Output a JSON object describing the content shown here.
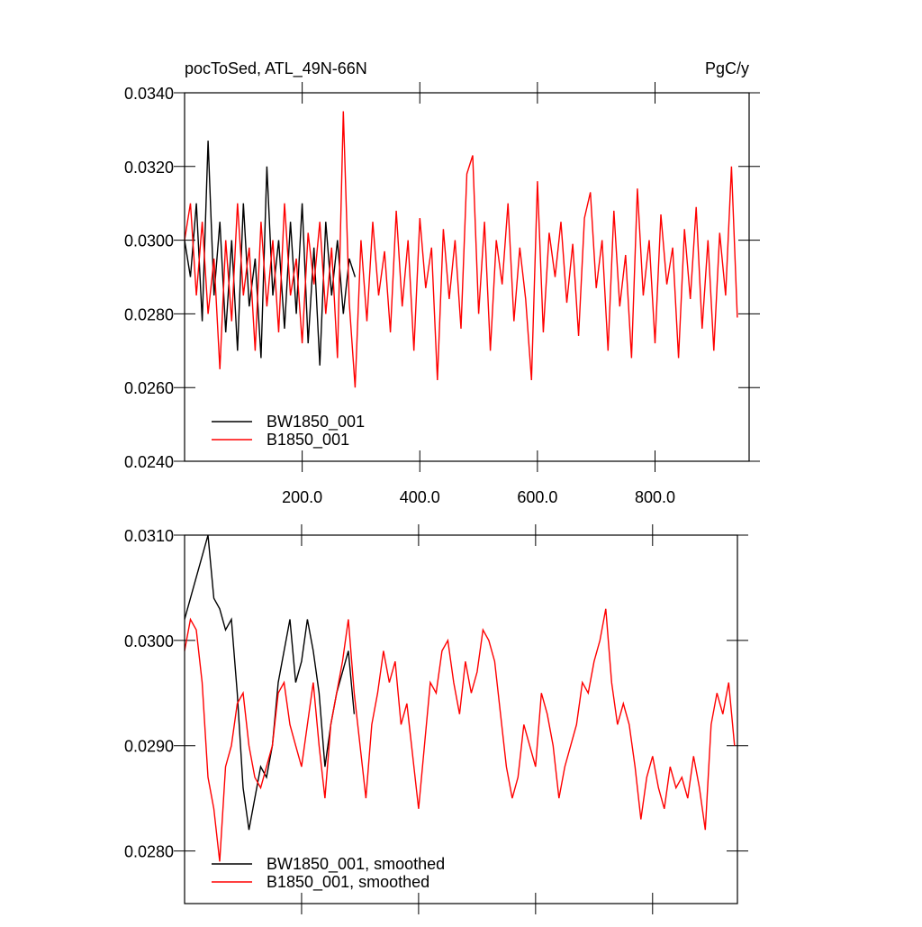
{
  "chart_data": [
    {
      "type": "line",
      "title": "pocToSed, ATL_49N-66N",
      "units": "PgC/y",
      "xlim": [
        0,
        960
      ],
      "xticks": [
        {
          "value": 200,
          "label": "200.0"
        },
        {
          "value": 400,
          "label": "400.0"
        },
        {
          "value": 600,
          "label": "600.0"
        },
        {
          "value": 800,
          "label": "800.0"
        }
      ],
      "xtick_labels": true,
      "ylim": [
        0.024,
        0.034
      ],
      "yticks": [
        {
          "value": 0.024,
          "label": "0.0240"
        },
        {
          "value": 0.026,
          "label": "0.0260"
        },
        {
          "value": 0.028,
          "label": "0.0280"
        },
        {
          "value": 0.03,
          "label": "0.0300"
        },
        {
          "value": 0.032,
          "label": "0.0320"
        },
        {
          "value": 0.034,
          "label": "0.0340"
        }
      ],
      "series": [
        {
          "name": "BW1850_001",
          "color": "#000000",
          "x": [
            0,
            10,
            20,
            30,
            40,
            50,
            60,
            70,
            80,
            90,
            100,
            110,
            120,
            130,
            140,
            150,
            160,
            170,
            180,
            190,
            200,
            210,
            220,
            230,
            240,
            250,
            260,
            270,
            280,
            290
          ],
          "values": [
            0.03,
            0.029,
            0.031,
            0.0278,
            0.0327,
            0.0285,
            0.0305,
            0.0275,
            0.03,
            0.027,
            0.031,
            0.0282,
            0.0295,
            0.0268,
            0.032,
            0.0285,
            0.03,
            0.0276,
            0.0305,
            0.028,
            0.031,
            0.0272,
            0.0298,
            0.0266,
            0.0305,
            0.0285,
            0.03,
            0.028,
            0.0295,
            0.029
          ]
        },
        {
          "name": "B1850_001",
          "color": "#ff0000",
          "x": [
            0,
            10,
            20,
            30,
            40,
            50,
            60,
            70,
            80,
            90,
            100,
            110,
            120,
            130,
            140,
            150,
            160,
            170,
            180,
            190,
            200,
            210,
            220,
            230,
            240,
            250,
            260,
            270,
            280,
            290,
            300,
            310,
            320,
            330,
            340,
            350,
            360,
            370,
            380,
            390,
            400,
            410,
            420,
            430,
            440,
            450,
            460,
            470,
            480,
            490,
            500,
            510,
            520,
            530,
            540,
            550,
            560,
            570,
            580,
            590,
            600,
            610,
            620,
            630,
            640,
            650,
            660,
            670,
            680,
            690,
            700,
            710,
            720,
            730,
            740,
            750,
            760,
            770,
            780,
            790,
            800,
            810,
            820,
            830,
            840,
            850,
            860,
            870,
            880,
            890,
            900,
            910,
            920,
            930,
            940
          ],
          "values": [
            0.03,
            0.031,
            0.0285,
            0.0305,
            0.028,
            0.0295,
            0.0265,
            0.03,
            0.0278,
            0.031,
            0.0285,
            0.0298,
            0.027,
            0.0305,
            0.0282,
            0.03,
            0.0275,
            0.031,
            0.0285,
            0.0295,
            0.0272,
            0.0302,
            0.0288,
            0.0305,
            0.028,
            0.0298,
            0.0268,
            0.0335,
            0.0283,
            0.026,
            0.03,
            0.0278,
            0.0305,
            0.0285,
            0.0297,
            0.0275,
            0.0308,
            0.0282,
            0.03,
            0.027,
            0.0306,
            0.0287,
            0.0298,
            0.0262,
            0.0303,
            0.0284,
            0.03,
            0.0276,
            0.0318,
            0.0323,
            0.028,
            0.0305,
            0.027,
            0.03,
            0.0288,
            0.031,
            0.0278,
            0.0298,
            0.0284,
            0.0262,
            0.0316,
            0.0275,
            0.0302,
            0.029,
            0.0305,
            0.0283,
            0.0299,
            0.0274,
            0.0306,
            0.0313,
            0.0287,
            0.03,
            0.027,
            0.0308,
            0.0282,
            0.0296,
            0.0268,
            0.0314,
            0.0285,
            0.03,
            0.0272,
            0.0307,
            0.0288,
            0.0298,
            0.0268,
            0.0303,
            0.0284,
            0.0309,
            0.0276,
            0.03,
            0.027,
            0.0302,
            0.0285,
            0.032,
            0.0279
          ]
        }
      ]
    },
    {
      "type": "line",
      "xlim": [
        0,
        945
      ],
      "xticks": [
        200,
        400,
        600,
        800
      ],
      "xtick_labels": false,
      "ylim": [
        0.0275,
        0.031
      ],
      "yticks": [
        {
          "value": 0.028,
          "label": "0.0280"
        },
        {
          "value": 0.029,
          "label": "0.0290"
        },
        {
          "value": 0.03,
          "label": "0.0300"
        },
        {
          "value": 0.031,
          "label": "0.0310"
        }
      ],
      "series": [
        {
          "name": "BW1850_001, smoothed",
          "color": "#000000",
          "x": [
            0,
            10,
            20,
            30,
            40,
            50,
            60,
            70,
            80,
            90,
            100,
            110,
            120,
            130,
            140,
            150,
            160,
            170,
            180,
            190,
            200,
            210,
            220,
            230,
            240,
            250,
            260,
            270,
            280,
            290
          ],
          "values": [
            0.0302,
            0.0304,
            0.0306,
            0.0308,
            0.031,
            0.0304,
            0.0303,
            0.0301,
            0.0302,
            0.0295,
            0.0286,
            0.0282,
            0.0285,
            0.0288,
            0.0287,
            0.029,
            0.0296,
            0.0299,
            0.0302,
            0.0296,
            0.0298,
            0.0302,
            0.0299,
            0.0295,
            0.0288,
            0.0292,
            0.0295,
            0.0297,
            0.0299,
            0.0293
          ]
        },
        {
          "name": "B1850_001, smoothed",
          "color": "#ff0000",
          "x": [
            0,
            10,
            20,
            30,
            40,
            50,
            60,
            70,
            80,
            90,
            100,
            110,
            120,
            130,
            140,
            150,
            160,
            170,
            180,
            190,
            200,
            210,
            220,
            230,
            240,
            250,
            260,
            270,
            280,
            290,
            300,
            310,
            320,
            330,
            340,
            350,
            360,
            370,
            380,
            390,
            400,
            410,
            420,
            430,
            440,
            450,
            460,
            470,
            480,
            490,
            500,
            510,
            520,
            530,
            540,
            550,
            560,
            570,
            580,
            590,
            600,
            610,
            620,
            630,
            640,
            650,
            660,
            670,
            680,
            690,
            700,
            710,
            720,
            730,
            740,
            750,
            760,
            770,
            780,
            790,
            800,
            810,
            820,
            830,
            840,
            850,
            860,
            870,
            880,
            890,
            900,
            910,
            920,
            930,
            940
          ],
          "values": [
            0.0299,
            0.0302,
            0.0301,
            0.0296,
            0.0287,
            0.0284,
            0.0279,
            0.0288,
            0.029,
            0.0294,
            0.0295,
            0.029,
            0.0287,
            0.0286,
            0.0288,
            0.029,
            0.0295,
            0.0296,
            0.0292,
            0.029,
            0.0288,
            0.0292,
            0.0296,
            0.029,
            0.0285,
            0.0292,
            0.0295,
            0.0298,
            0.0302,
            0.0295,
            0.029,
            0.0285,
            0.0292,
            0.0295,
            0.0299,
            0.0296,
            0.0298,
            0.0292,
            0.0294,
            0.0289,
            0.0284,
            0.029,
            0.0296,
            0.0295,
            0.0299,
            0.03,
            0.0296,
            0.0293,
            0.0298,
            0.0295,
            0.0297,
            0.0301,
            0.03,
            0.0298,
            0.0293,
            0.0288,
            0.0285,
            0.0287,
            0.0292,
            0.029,
            0.0288,
            0.0295,
            0.0293,
            0.029,
            0.0285,
            0.0288,
            0.029,
            0.0292,
            0.0296,
            0.0295,
            0.0298,
            0.03,
            0.0303,
            0.0296,
            0.0292,
            0.0294,
            0.0292,
            0.0288,
            0.0283,
            0.0287,
            0.0289,
            0.0286,
            0.0284,
            0.0288,
            0.0286,
            0.0287,
            0.0285,
            0.0289,
            0.0286,
            0.0282,
            0.0292,
            0.0295,
            0.0293,
            0.0296,
            0.029
          ]
        }
      ]
    }
  ]
}
